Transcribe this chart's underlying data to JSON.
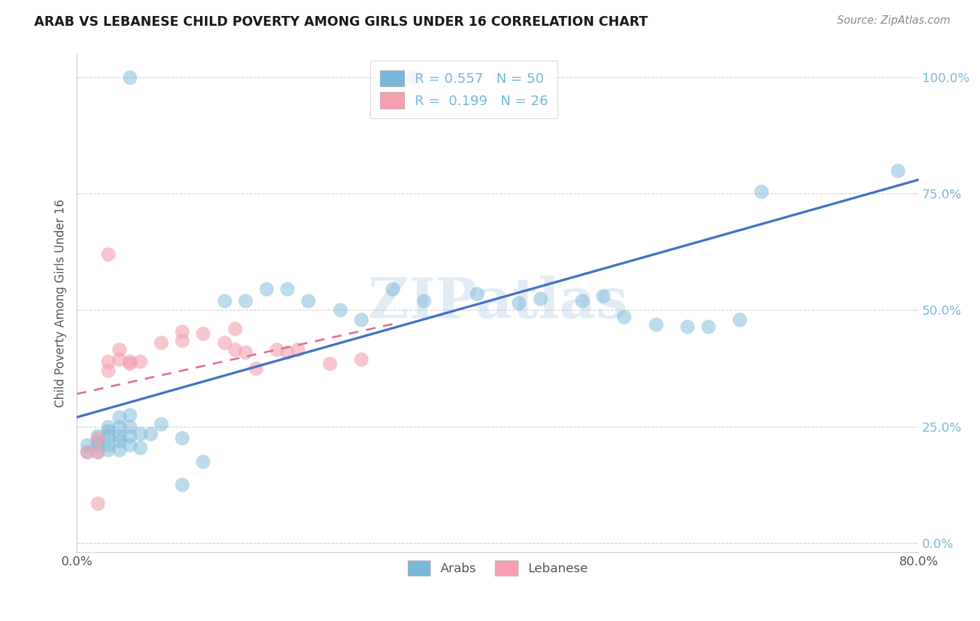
{
  "title": "ARAB VS LEBANESE CHILD POVERTY AMONG GIRLS UNDER 16 CORRELATION CHART",
  "source": "Source: ZipAtlas.com",
  "ylabel": "Child Poverty Among Girls Under 16",
  "xlim": [
    0.0,
    0.8
  ],
  "ylim": [
    -0.02,
    1.05
  ],
  "xticks": [
    0.0,
    0.8
  ],
  "xtick_labels": [
    "0.0%",
    "80.0%"
  ],
  "ytick_labels": [
    "0.0%",
    "25.0%",
    "50.0%",
    "75.0%",
    "100.0%"
  ],
  "ytick_vals": [
    0.0,
    0.25,
    0.5,
    0.75,
    1.0
  ],
  "watermark": "ZIPatlas",
  "legend_R_arab": "0.557",
  "legend_N_arab": "50",
  "legend_R_leb": "0.199",
  "legend_N_leb": "26",
  "arab_color": "#7ab8d9",
  "leb_color": "#f4a0b0",
  "arab_line_color": "#4472c4",
  "leb_line_color": "#e07090",
  "arab_scatter": [
    [
      0.01,
      0.195
    ],
    [
      0.01,
      0.21
    ],
    [
      0.02,
      0.195
    ],
    [
      0.02,
      0.21
    ],
    [
      0.02,
      0.22
    ],
    [
      0.02,
      0.23
    ],
    [
      0.03,
      0.2
    ],
    [
      0.03,
      0.21
    ],
    [
      0.03,
      0.23
    ],
    [
      0.03,
      0.24
    ],
    [
      0.03,
      0.25
    ],
    [
      0.04,
      0.2
    ],
    [
      0.04,
      0.22
    ],
    [
      0.04,
      0.23
    ],
    [
      0.04,
      0.25
    ],
    [
      0.04,
      0.27
    ],
    [
      0.05,
      0.21
    ],
    [
      0.05,
      0.23
    ],
    [
      0.05,
      0.25
    ],
    [
      0.05,
      0.275
    ],
    [
      0.05,
      1.0
    ],
    [
      0.06,
      0.205
    ],
    [
      0.06,
      0.235
    ],
    [
      0.07,
      0.235
    ],
    [
      0.08,
      0.255
    ],
    [
      0.1,
      0.125
    ],
    [
      0.1,
      0.225
    ],
    [
      0.12,
      0.175
    ],
    [
      0.14,
      0.52
    ],
    [
      0.16,
      0.52
    ],
    [
      0.18,
      0.545
    ],
    [
      0.2,
      0.545
    ],
    [
      0.22,
      0.52
    ],
    [
      0.25,
      0.5
    ],
    [
      0.27,
      0.48
    ],
    [
      0.3,
      0.545
    ],
    [
      0.32,
      1.0
    ],
    [
      0.33,
      0.52
    ],
    [
      0.38,
      0.535
    ],
    [
      0.42,
      0.515
    ],
    [
      0.44,
      0.525
    ],
    [
      0.48,
      0.52
    ],
    [
      0.5,
      0.53
    ],
    [
      0.52,
      0.485
    ],
    [
      0.55,
      0.47
    ],
    [
      0.58,
      0.465
    ],
    [
      0.6,
      0.465
    ],
    [
      0.63,
      0.48
    ],
    [
      0.65,
      0.755
    ],
    [
      0.78,
      0.8
    ]
  ],
  "leb_scatter": [
    [
      0.01,
      0.195
    ],
    [
      0.02,
      0.195
    ],
    [
      0.02,
      0.225
    ],
    [
      0.03,
      0.37
    ],
    [
      0.03,
      0.39
    ],
    [
      0.04,
      0.395
    ],
    [
      0.04,
      0.415
    ],
    [
      0.05,
      0.385
    ],
    [
      0.05,
      0.39
    ],
    [
      0.06,
      0.39
    ],
    [
      0.08,
      0.43
    ],
    [
      0.1,
      0.435
    ],
    [
      0.1,
      0.455
    ],
    [
      0.12,
      0.45
    ],
    [
      0.14,
      0.43
    ],
    [
      0.15,
      0.46
    ],
    [
      0.15,
      0.415
    ],
    [
      0.16,
      0.41
    ],
    [
      0.17,
      0.375
    ],
    [
      0.19,
      0.415
    ],
    [
      0.2,
      0.41
    ],
    [
      0.21,
      0.415
    ],
    [
      0.24,
      0.385
    ],
    [
      0.27,
      0.395
    ],
    [
      0.03,
      0.62
    ],
    [
      0.02,
      0.085
    ]
  ]
}
